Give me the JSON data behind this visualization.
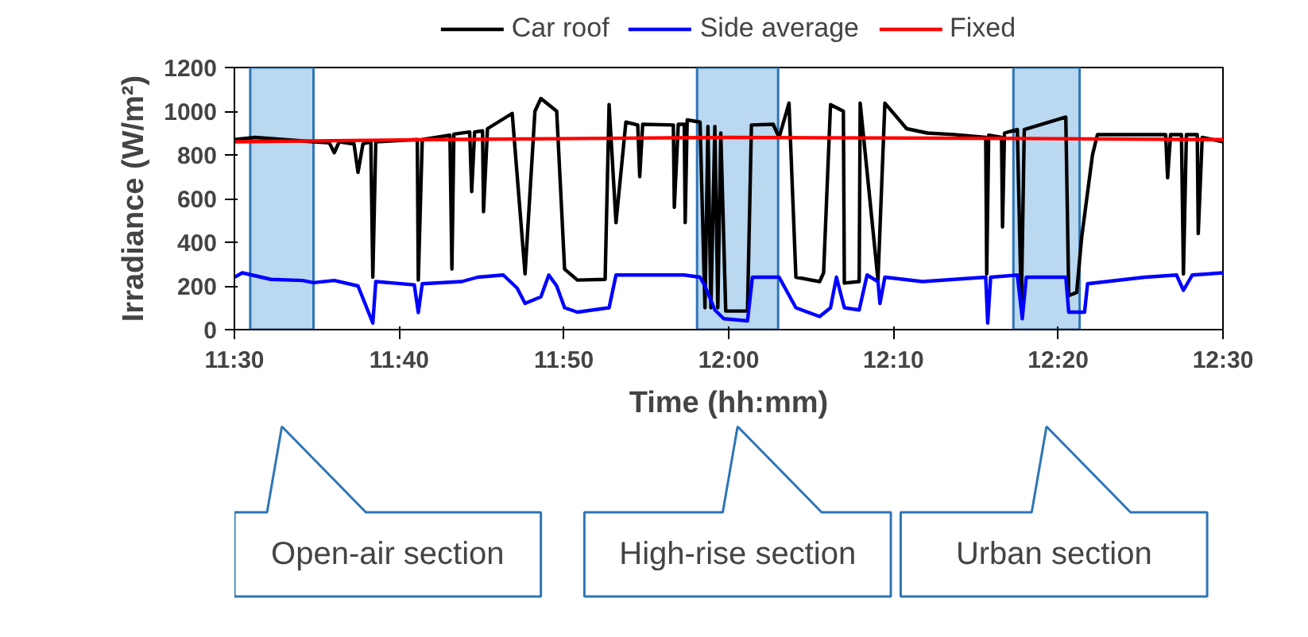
{
  "chart_data": {
    "type": "line",
    "xlabel": "Time (hh:mm)",
    "ylabel": "Irradiance (W/m²)",
    "xlim": [
      11.5,
      12.5
    ],
    "ylim": [
      0,
      1200
    ],
    "xticks": [
      {
        "value": 11.5,
        "label": "11:30"
      },
      {
        "value": 11.6667,
        "label": "11:40"
      },
      {
        "value": 11.8333,
        "label": "11:50"
      },
      {
        "value": 12.0,
        "label": "12:00"
      },
      {
        "value": 12.1667,
        "label": "12:10"
      },
      {
        "value": 12.3333,
        "label": "12:20"
      },
      {
        "value": 12.5,
        "label": "12:30"
      }
    ],
    "yticks": [
      0,
      200,
      400,
      600,
      800,
      1000,
      1200
    ],
    "grid": false,
    "legend": "top",
    "marker": "none",
    "line_style": "solid",
    "series": [
      {
        "name": "Car roof",
        "color": "#000000",
        "x": [
          11.5,
          11.521,
          11.58,
          11.596,
          11.601,
          11.606,
          11.621,
          11.625,
          11.63,
          11.638,
          11.64,
          11.643,
          11.685,
          11.686,
          11.69,
          11.718,
          11.72,
          11.722,
          11.738,
          11.74,
          11.743,
          11.751,
          11.752,
          11.756,
          11.781,
          11.794,
          11.804,
          11.81,
          11.826,
          11.834,
          11.847,
          11.875,
          11.879,
          11.886,
          11.896,
          11.908,
          11.91,
          11.913,
          11.944,
          11.945,
          11.949,
          11.955,
          11.956,
          11.958,
          11.971,
          11.976,
          11.979,
          11.982,
          11.986,
          11.989,
          11.992,
          11.997,
          12.019,
          12.023,
          12.045,
          12.051,
          12.061,
          12.068,
          12.092,
          12.096,
          12.103,
          12.116,
          12.117,
          12.132,
          12.133,
          12.151,
          12.158,
          12.18,
          12.201,
          12.228,
          12.26,
          12.261,
          12.263,
          12.276,
          12.277,
          12.279,
          12.292,
          12.296,
          12.299,
          12.341,
          12.344,
          12.352,
          12.357,
          12.368,
          12.373,
          12.442,
          12.444,
          12.447,
          12.458,
          12.46,
          12.463,
          12.474,
          12.475,
          12.479,
          12.5
        ],
        "values": [
          870,
          880,
          860,
          855,
          810,
          860,
          850,
          720,
          850,
          860,
          240,
          860,
          870,
          227,
          870,
          890,
          277,
          895,
          905,
          632,
          905,
          910,
          540,
          920,
          990,
          255,
          1000,
          1058,
          1000,
          277,
          227,
          230,
          1030,
          490,
          950,
          937,
          700,
          940,
          937,
          560,
          940,
          940,
          490,
          960,
          950,
          100,
          930,
          100,
          930,
          100,
          900,
          85,
          85,
          937,
          940,
          880,
          1037,
          240,
          220,
          260,
          1030,
          1000,
          213,
          220,
          1037,
          227,
          1037,
          920,
          900,
          893,
          880,
          255,
          890,
          880,
          470,
          900,
          916,
          100,
          916,
          973,
          156,
          170,
          420,
          800,
          893,
          893,
          695,
          893,
          893,
          255,
          893,
          893,
          440,
          880,
          860
        ]
      },
      {
        "name": "Side average",
        "color": "#0000ff",
        "x": [
          11.5,
          11.508,
          11.537,
          11.569,
          11.58,
          11.601,
          11.625,
          11.64,
          11.643,
          11.682,
          11.686,
          11.69,
          11.73,
          11.746,
          11.772,
          11.786,
          11.794,
          11.81,
          11.818,
          11.826,
          11.834,
          11.847,
          11.879,
          11.886,
          11.907,
          11.955,
          11.971,
          11.976,
          11.986,
          11.995,
          12.019,
          12.024,
          12.051,
          12.068,
          12.092,
          12.103,
          12.109,
          12.117,
          12.132,
          12.14,
          12.151,
          12.153,
          12.158,
          12.196,
          12.228,
          12.26,
          12.262,
          12.265,
          12.292,
          12.297,
          12.301,
          12.341,
          12.344,
          12.36,
          12.363,
          12.421,
          12.453,
          12.46,
          12.469,
          12.5
        ],
        "values": [
          240,
          260,
          230,
          225,
          215,
          225,
          200,
          30,
          220,
          205,
          78,
          210,
          220,
          240,
          250,
          190,
          120,
          150,
          250,
          200,
          100,
          80,
          100,
          250,
          250,
          250,
          240,
          200,
          90,
          50,
          40,
          240,
          240,
          100,
          60,
          100,
          240,
          100,
          90,
          250,
          220,
          120,
          240,
          220,
          230,
          240,
          30,
          240,
          250,
          50,
          240,
          240,
          80,
          80,
          210,
          240,
          250,
          180,
          250,
          260
        ]
      },
      {
        "name": "Fixed",
        "color": "#ff0000",
        "x": [
          11.5,
          11.7,
          12.0,
          12.3,
          12.5
        ],
        "values": [
          860,
          870,
          880,
          875,
          870
        ]
      }
    ],
    "bands": [
      {
        "axis": "x",
        "from": 11.516,
        "to": 11.58,
        "color": "#9dc8e8"
      },
      {
        "axis": "x",
        "from": 11.968,
        "to": 12.05,
        "color": "#9dc8e8"
      },
      {
        "axis": "x",
        "from": 12.288,
        "to": 12.355,
        "color": "#9dc8e8"
      }
    ],
    "annotations": [
      "Open-air section",
      "High-rise section",
      "Urban section"
    ]
  }
}
